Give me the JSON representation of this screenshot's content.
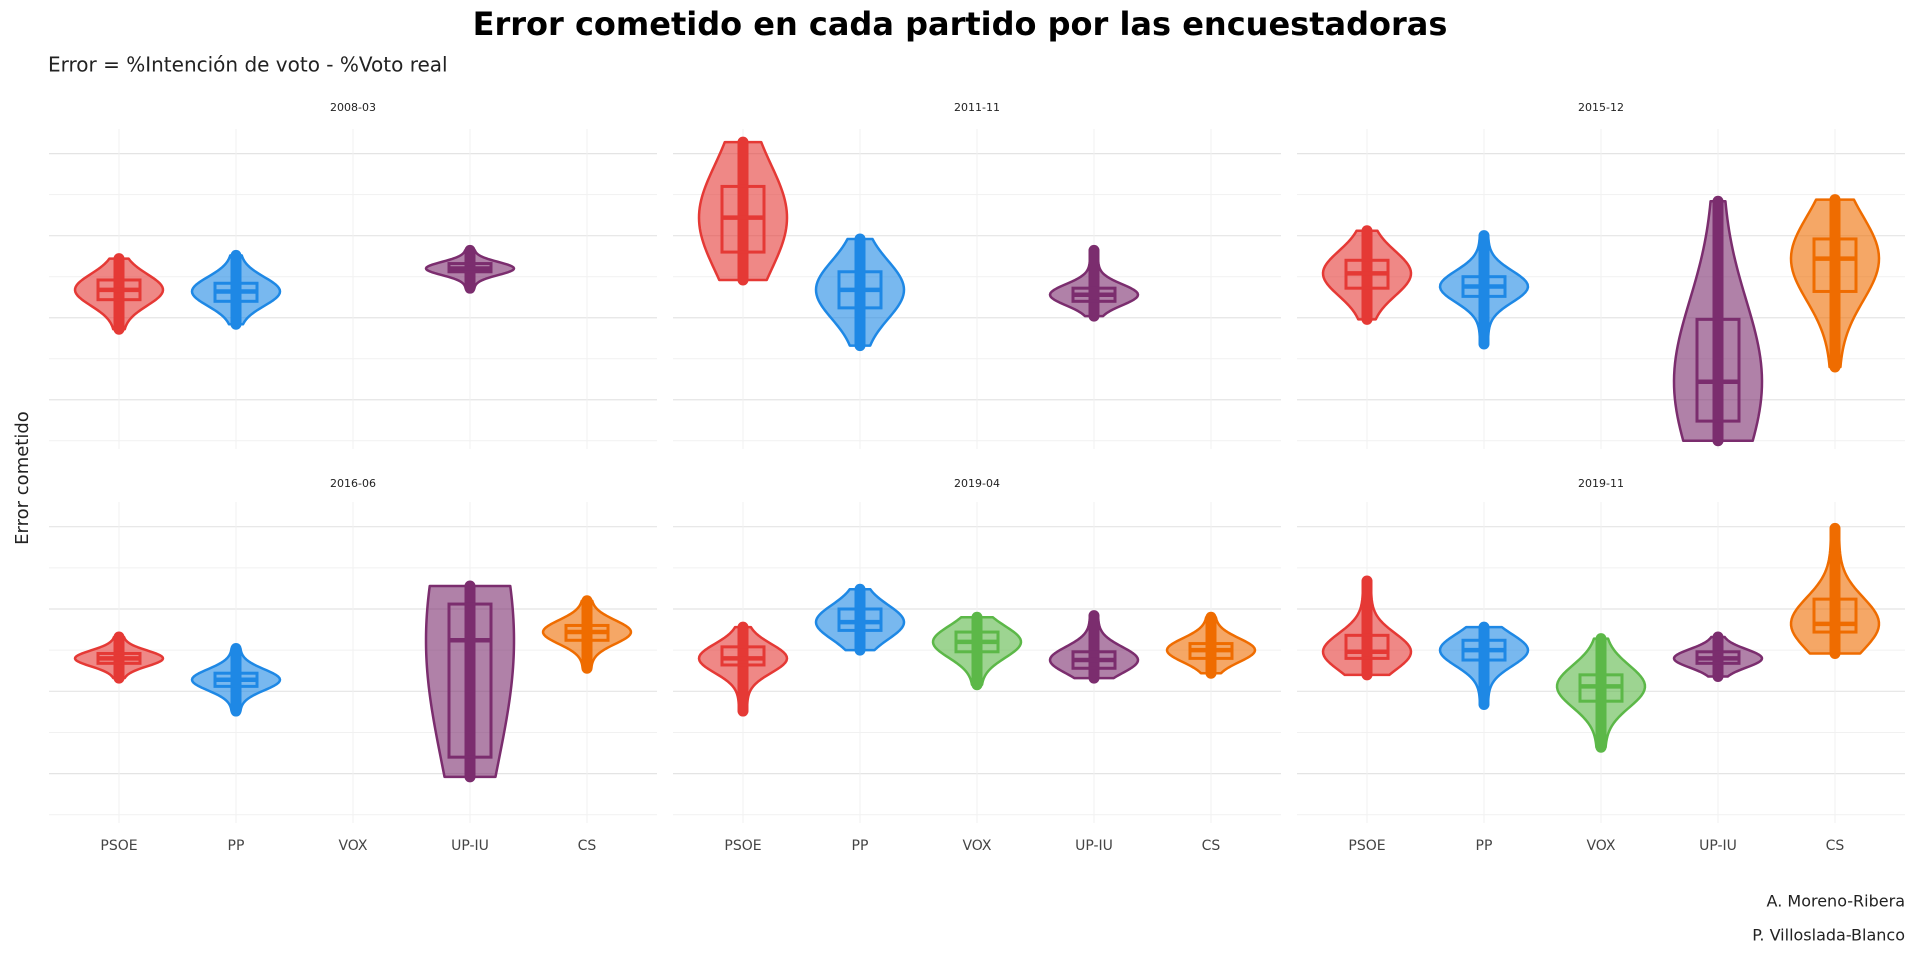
{
  "title": "Error cometido en cada partido por las encuestadoras",
  "subtitle": "Error = %Intención de voto - %Voto real",
  "ylabel": "Error cometido",
  "credits": [
    "A. Moreno-Ribera",
    "P. Villoslada-Blanco"
  ],
  "categories": [
    "PSOE",
    "PP",
    "VOX",
    "UP-IU",
    "CS"
  ],
  "colors": [
    "#e53935",
    "#1e88e5",
    "#5cb848",
    "#7b2d6e",
    "#ef6c00"
  ],
  "chart_data": [
    {
      "type": "violin",
      "title": "2008-03",
      "ylim": [
        -8,
        11.5
      ],
      "yticks": [
        -7.5,
        -5,
        -2.5,
        0,
        2.5,
        5,
        7.5,
        10
      ],
      "boxes": [
        {
          "min": -0.7,
          "q1": 1.1,
          "median": 1.7,
          "q3": 2.3,
          "max": 3.6
        },
        {
          "min": -0.4,
          "q1": 1.0,
          "median": 1.6,
          "q3": 2.1,
          "max": 3.8
        },
        null,
        {
          "min": 1.8,
          "q1": 2.8,
          "median": 3.0,
          "q3": 3.3,
          "max": 4.1
        },
        null
      ]
    },
    {
      "type": "violin",
      "title": "2011-11",
      "ylim": [
        -8,
        11.5
      ],
      "yticks": [
        -7.5,
        -5,
        -2.5,
        0,
        2.5,
        5,
        7.5,
        10
      ],
      "boxes": [
        {
          "min": 2.3,
          "q1": 4.0,
          "median": 6.1,
          "q3": 8.0,
          "max": 10.7
        },
        {
          "min": -1.7,
          "q1": 0.6,
          "median": 1.7,
          "q3": 2.8,
          "max": 4.8
        },
        null,
        {
          "min": 0.1,
          "q1": 1.0,
          "median": 1.4,
          "q3": 1.8,
          "max": 4.1
        },
        null
      ]
    },
    {
      "type": "violin",
      "title": "2015-12",
      "ylim": [
        -8,
        11.5
      ],
      "yticks": [
        -7.5,
        -5,
        -2.5,
        0,
        2.5,
        5,
        7.5,
        10
      ],
      "boxes": [
        {
          "min": -0.1,
          "q1": 1.8,
          "median": 2.7,
          "q3": 3.5,
          "max": 5.3
        },
        {
          "min": -1.6,
          "q1": 1.3,
          "median": 1.9,
          "q3": 2.5,
          "max": 5.0
        },
        null,
        {
          "min": -7.5,
          "q1": -6.3,
          "median": -3.9,
          "q3": -0.1,
          "max": 7.1
        },
        {
          "min": -3.0,
          "q1": 1.6,
          "median": 3.6,
          "q3": 4.8,
          "max": 7.2
        }
      ]
    },
    {
      "type": "violin",
      "title": "2016-06",
      "ylim": [
        -8,
        11.5
      ],
      "yticks": [
        -7.5,
        -5,
        -2.5,
        0,
        2.5,
        5,
        7.5,
        10
      ],
      "boxes": [
        {
          "min": 0.8,
          "q1": 1.7,
          "median": 2.0,
          "q3": 2.3,
          "max": 3.3
        },
        {
          "min": -1.2,
          "q1": 0.3,
          "median": 0.7,
          "q3": 1.1,
          "max": 2.6
        },
        null,
        {
          "min": -5.2,
          "q1": -4.0,
          "median": 3.1,
          "q3": 5.3,
          "max": 6.4
        },
        {
          "min": 1.4,
          "q1": 3.1,
          "median": 3.6,
          "q3": 4.0,
          "max": 5.5
        }
      ]
    },
    {
      "type": "violin",
      "title": "2019-04",
      "ylim": [
        -8,
        11.5
      ],
      "yticks": [
        -7.5,
        -5,
        -2.5,
        0,
        2.5,
        5,
        7.5,
        10
      ],
      "boxes": [
        {
          "min": -1.2,
          "q1": 1.6,
          "median": 2.0,
          "q3": 2.7,
          "max": 3.9
        },
        {
          "min": 2.5,
          "q1": 3.7,
          "median": 4.2,
          "q3": 5.0,
          "max": 6.2
        },
        {
          "min": 0.4,
          "q1": 2.4,
          "median": 3.0,
          "q3": 3.6,
          "max": 4.5
        },
        {
          "min": 0.8,
          "q1": 1.4,
          "median": 1.9,
          "q3": 2.4,
          "max": 4.6
        },
        {
          "min": 1.1,
          "q1": 2.0,
          "median": 2.5,
          "q3": 2.9,
          "max": 4.5
        }
      ]
    },
    {
      "type": "violin",
      "title": "2019-11",
      "ylim": [
        -8,
        11.5
      ],
      "yticks": [
        -7.5,
        -5,
        -2.5,
        0,
        2.5,
        5,
        7.5,
        10
      ],
      "boxes": [
        {
          "min": 1.0,
          "q1": 2.0,
          "median": 2.4,
          "q3": 3.4,
          "max": 6.7
        },
        {
          "min": -0.8,
          "q1": 1.9,
          "median": 2.5,
          "q3": 3.1,
          "max": 3.9
        },
        {
          "min": -3.4,
          "q1": -0.6,
          "median": 0.3,
          "q3": 1.0,
          "max": 3.2
        },
        {
          "min": 0.9,
          "q1": 1.7,
          "median": 2.0,
          "q3": 2.4,
          "max": 3.3
        },
        {
          "min": 2.3,
          "q1": 3.6,
          "median": 4.1,
          "q3": 5.6,
          "max": 9.9
        }
      ]
    }
  ]
}
